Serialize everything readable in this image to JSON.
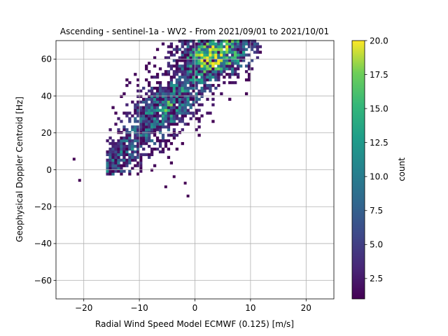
{
  "chart_data": {
    "type": "heatmap",
    "title": "Ascending - sentinel-1a - WV2 - From 2021/09/01 to 2021/10/01",
    "xlabel": "Radial Wind Speed Model ECMWF (0.125) [m/s]",
    "ylabel": "Geophysical Doppler Centroid [Hz]",
    "xlim": [
      -25,
      25
    ],
    "ylim": [
      -70,
      70
    ],
    "xticks": [
      -20,
      -10,
      0,
      10,
      20
    ],
    "yticks": [
      -60,
      -40,
      -20,
      0,
      20,
      40,
      60
    ],
    "grid": true,
    "bin_size": {
      "x": 0.5,
      "y": 1.5
    },
    "colorbar": {
      "label": "count",
      "colormap": "viridis",
      "range": [
        1,
        20
      ],
      "ticks": [
        2.5,
        5.0,
        7.5,
        10.0,
        12.5,
        15.0,
        17.5,
        20.0
      ]
    },
    "density": {
      "description_free": true,
      "core": {
        "x": [
          -10,
          10
        ],
        "y": [
          0,
          70
        ],
        "center": [
          2,
          60
        ]
      },
      "peak_count": 20
    },
    "outliers": [
      [
        -22,
        5
      ],
      [
        -21,
        -6.5
      ],
      [
        -2,
        -8
      ],
      [
        -1.5,
        -15
      ],
      [
        -5.5,
        -10
      ],
      [
        -4,
        -4.5
      ],
      [
        -8,
        -1
      ]
    ]
  }
}
